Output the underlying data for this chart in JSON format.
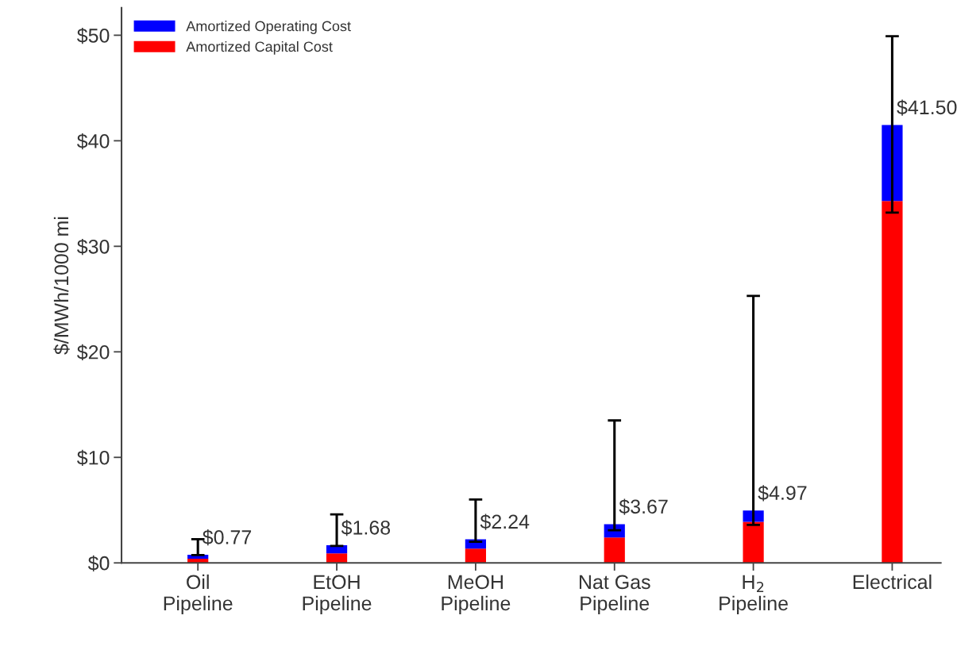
{
  "chart_data": {
    "type": "bar",
    "stacked": true,
    "ylabel": "$/MWh/1000 mi",
    "categories": [
      "Oil\nPipeline",
      "EtOH\nPipeline",
      "MeOH\nPipeline",
      "Nat Gas\nPipeline",
      "H$_{2}$\nPipeline",
      "Electrical"
    ],
    "series": [
      {
        "name": "Amortized Capital Cost",
        "color": "#ff0000",
        "values": [
          0.4,
          0.9,
          1.35,
          2.4,
          3.9,
          34.3
        ]
      },
      {
        "name": "Amortized Operating Cost",
        "color": "#0000ff",
        "values": [
          0.37,
          0.78,
          0.89,
          1.27,
          1.07,
          7.2
        ],
        "errors": [
          [
            0.75,
            2.25
          ],
          [
            1.6,
            4.6
          ],
          [
            2.0,
            6.0
          ],
          [
            3.1,
            13.5
          ],
          [
            3.6,
            25.3
          ],
          [
            33.2,
            49.9
          ]
        ]
      }
    ],
    "totals": [
      "$0.77",
      "$1.68",
      "$2.24",
      "$3.67",
      "$4.97",
      "$41.50"
    ],
    "ylim": [
      0,
      52.6
    ],
    "yticks": [
      {
        "value": 0,
        "label": "$0"
      },
      {
        "value": 10,
        "label": "$10"
      },
      {
        "value": 20,
        "label": "$20"
      },
      {
        "value": 30,
        "label": "$30"
      },
      {
        "value": 40,
        "label": "$40"
      },
      {
        "value": 50,
        "label": "$50"
      }
    ],
    "legend": "top left",
    "grid": false
  }
}
